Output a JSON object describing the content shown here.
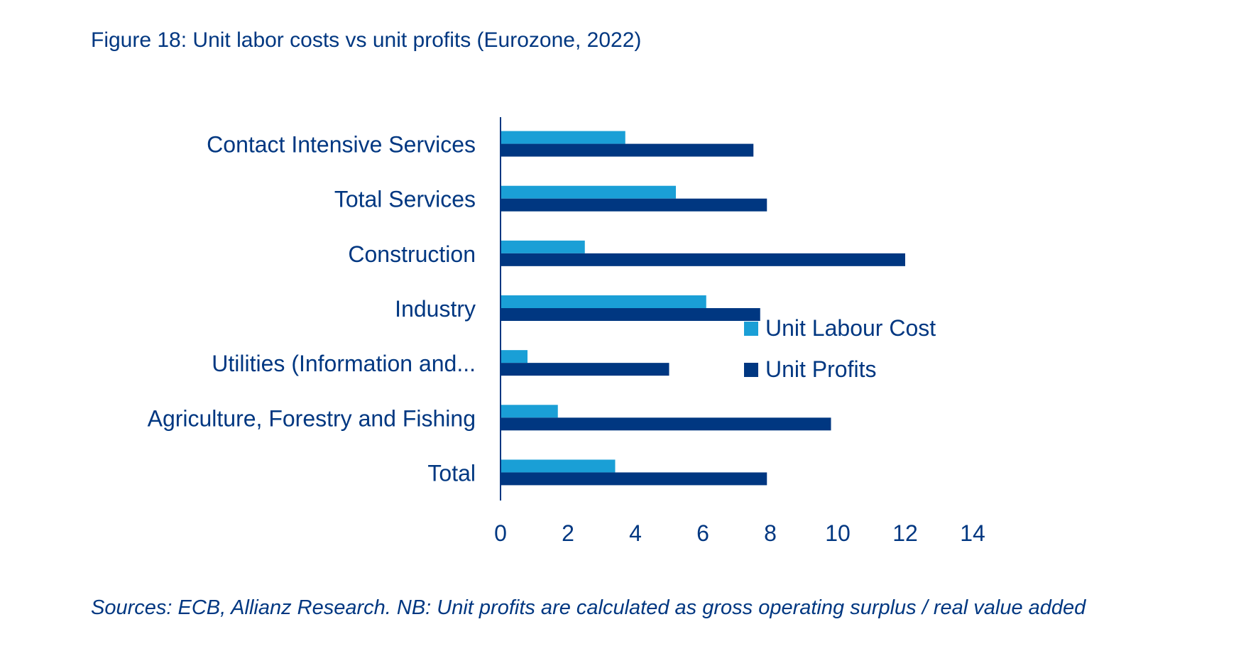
{
  "title": "Figure 18: Unit labor costs vs unit profits (Eurozone, 2022)",
  "source": "Sources: ECB, Allianz Research. NB: Unit profits are calculated as gross operating surplus / real value added",
  "colors": {
    "text": "#003781",
    "unit_labour_cost": "#1a9fd6",
    "unit_profits": "#003781"
  },
  "chart_data": {
    "type": "bar",
    "orientation": "horizontal",
    "categories": [
      "Contact Intensive Services",
      "Total Services",
      "Construction",
      "Industry",
      "Utilities (Information and...",
      "Agriculture, Forestry and Fishing",
      "Total"
    ],
    "series": [
      {
        "name": "Unit Labour Cost",
        "values": [
          3.7,
          5.2,
          2.5,
          6.1,
          0.8,
          1.7,
          3.4
        ]
      },
      {
        "name": "Unit Profits",
        "values": [
          7.5,
          7.9,
          12.0,
          7.7,
          5.0,
          9.8,
          7.9
        ]
      }
    ],
    "xlim": [
      0,
      14
    ],
    "xticks": [
      "0",
      "2",
      "4",
      "6",
      "8",
      "10",
      "12",
      "14"
    ],
    "xlabel": "",
    "ylabel": "",
    "legend_position": "right",
    "grid": false
  }
}
